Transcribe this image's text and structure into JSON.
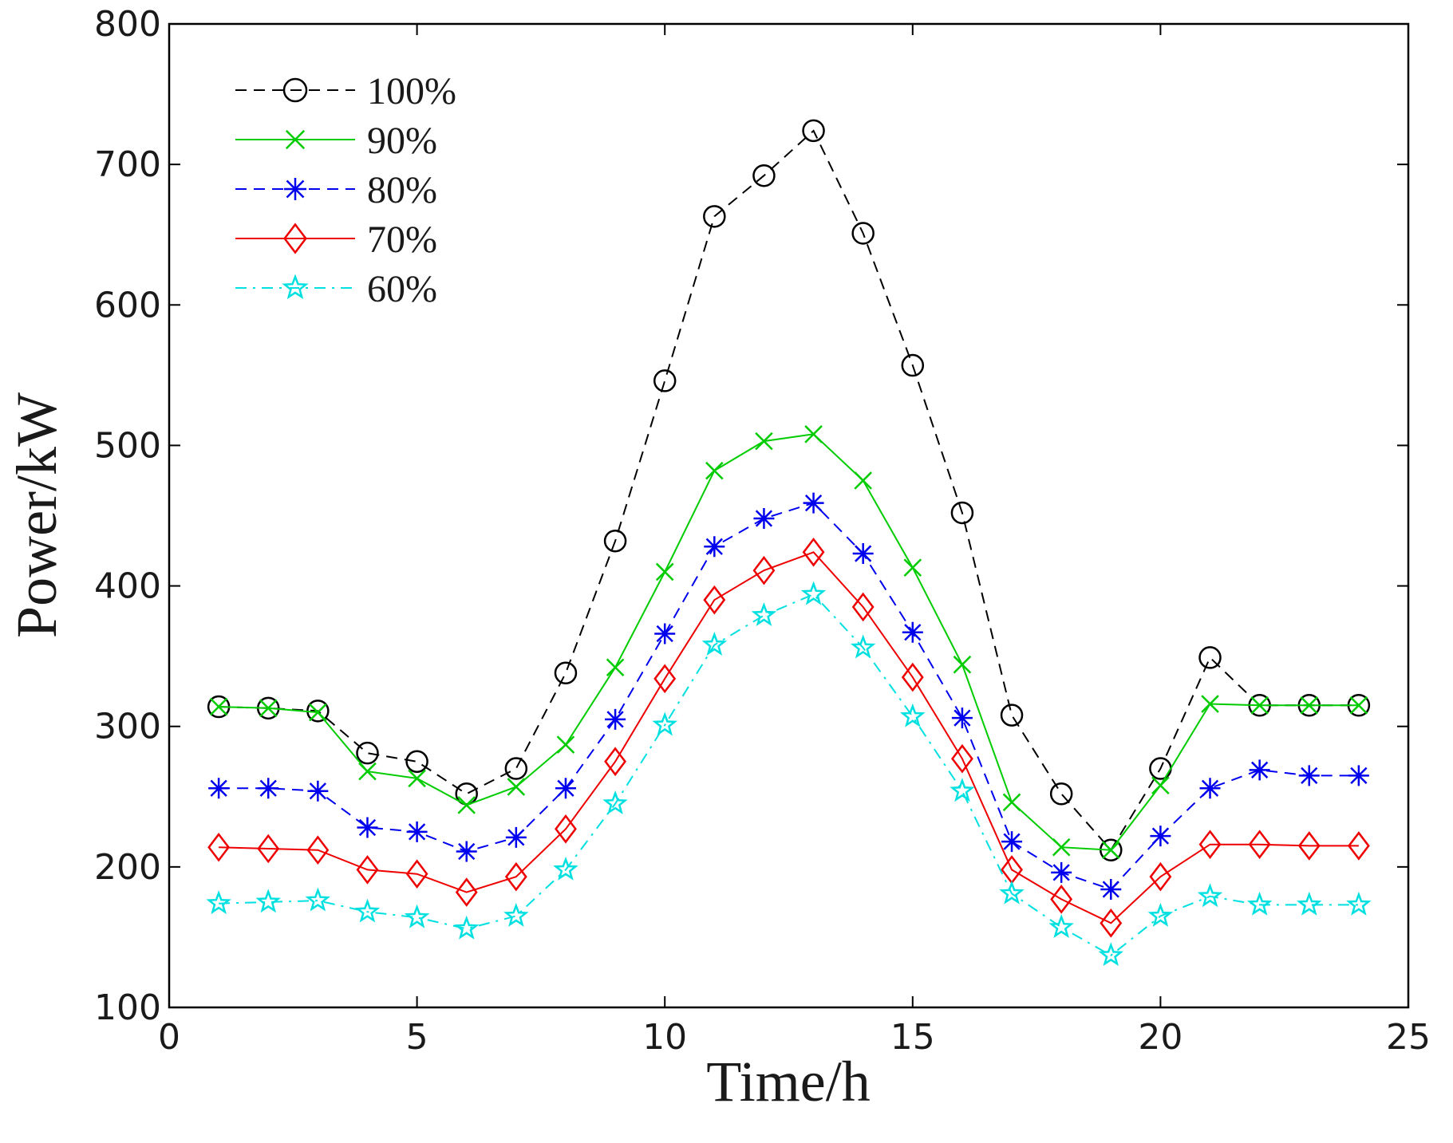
{
  "chart_data": {
    "type": "line",
    "title": "",
    "xlabel": "Time/h",
    "ylabel": "Power/kW",
    "xlim": [
      0,
      25
    ],
    "ylim": [
      100,
      800
    ],
    "xticks": [
      0,
      5,
      10,
      15,
      20,
      25
    ],
    "yticks": [
      100,
      200,
      300,
      400,
      500,
      600,
      700,
      800
    ],
    "grid": false,
    "legend_position": "top-left",
    "x": [
      1,
      2,
      3,
      4,
      5,
      6,
      7,
      8,
      9,
      10,
      11,
      12,
      13,
      14,
      15,
      16,
      17,
      18,
      19,
      20,
      21,
      22,
      23,
      24
    ],
    "series": [
      {
        "name": "100%",
        "color": "#000000",
        "marker": "circle",
        "line_style": "dashed",
        "values": [
          314,
          313,
          311,
          281,
          275,
          252,
          270,
          338,
          432,
          546,
          663,
          692,
          724,
          651,
          557,
          452,
          308,
          252,
          212,
          270,
          349,
          315,
          315,
          315
        ]
      },
      {
        "name": "90%",
        "color": "#00cc00",
        "marker": "x",
        "line_style": "solid",
        "values": [
          314,
          313,
          310,
          268,
          263,
          244,
          257,
          287,
          342,
          410,
          482,
          503,
          508,
          475,
          413,
          344,
          246,
          214,
          212,
          258,
          316,
          315,
          315,
          315
        ]
      },
      {
        "name": "80%",
        "color": "#0000ee",
        "marker": "asterisk",
        "line_style": "dashed",
        "values": [
          256,
          256,
          254,
          228,
          225,
          211,
          221,
          256,
          305,
          366,
          428,
          448,
          459,
          423,
          367,
          306,
          218,
          196,
          184,
          222,
          256,
          269,
          265,
          265
        ]
      },
      {
        "name": "70%",
        "color": "#ee0000",
        "marker": "diamond",
        "line_style": "solid",
        "values": [
          214,
          213,
          212,
          198,
          195,
          182,
          193,
          227,
          275,
          334,
          390,
          411,
          424,
          385,
          335,
          277,
          198,
          177,
          160,
          193,
          216,
          216,
          215,
          215
        ]
      },
      {
        "name": "60%",
        "color": "#00e0e0",
        "marker": "star",
        "line_style": "dashdot",
        "values": [
          174,
          175,
          176,
          168,
          164,
          156,
          165,
          198,
          245,
          301,
          358,
          379,
          394,
          356,
          307,
          254,
          181,
          157,
          137,
          165,
          179,
          173,
          173,
          173
        ]
      }
    ]
  }
}
